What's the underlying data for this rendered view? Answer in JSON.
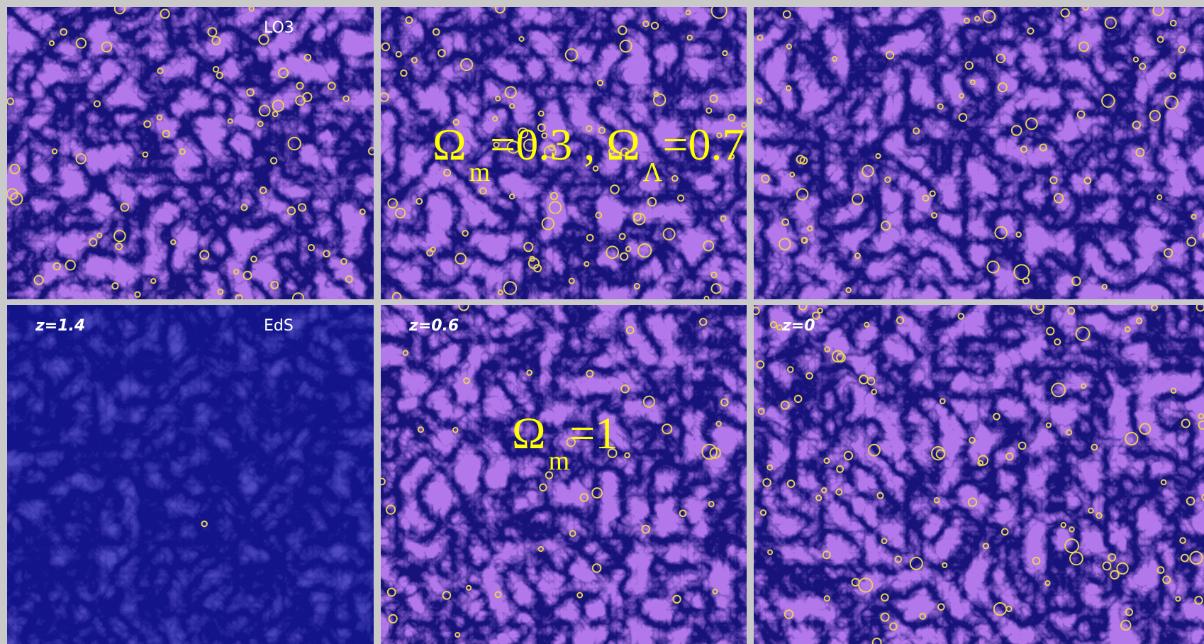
{
  "panels": [
    {
      "label": "LO3"
    },
    {},
    {},
    {
      "label": "EdS",
      "redshift": "z=1.4"
    },
    {
      "redshift": "z=0.6"
    },
    {
      "redshift": "z=0"
    }
  ],
  "overlays": [
    [
      {
        "text": "Ω",
        "sub": "m"
      },
      {
        "text": "=0.3 , Ω",
        "sub": "Λ"
      },
      {
        "text": "=0.7"
      }
    ],
    [
      {
        "text": "Ω",
        "sub": "m"
      },
      {
        "text": "=1"
      }
    ]
  ]
}
